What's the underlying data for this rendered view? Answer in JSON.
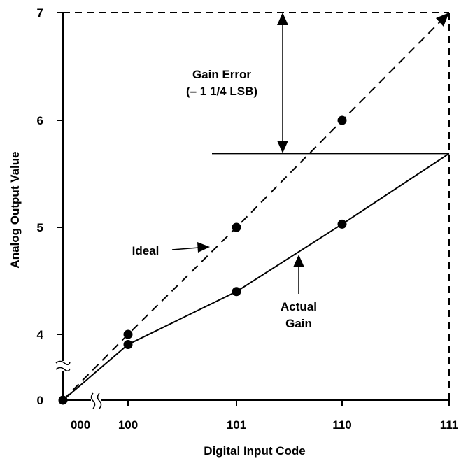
{
  "chart_data": {
    "type": "line",
    "xlabel": "Digital Input Code",
    "ylabel": "Analog Output Value",
    "x_ticks": [
      "000",
      "100",
      "101",
      "110",
      "111"
    ],
    "y_ticks": [
      "0",
      "4",
      "5",
      "6",
      "7"
    ],
    "axis_breaks": {
      "x": true,
      "y": true
    },
    "series": [
      {
        "name": "Ideal",
        "style": "dashed",
        "points": [
          {
            "x": "000",
            "y": 0
          },
          {
            "x": "100",
            "y": 4
          },
          {
            "x": "101",
            "y": 5
          },
          {
            "x": "110",
            "y": 6
          },
          {
            "x": "111",
            "y": 7
          }
        ],
        "markers": [
          "100",
          "101",
          "110"
        ]
      },
      {
        "name": "Actual Gain",
        "style": "solid",
        "points": [
          {
            "x": "000",
            "y": 0
          },
          {
            "x": "100",
            "y": 3.75
          },
          {
            "x": "101",
            "y": 4.4
          },
          {
            "x": "110",
            "y": 5.03
          },
          {
            "x": "111",
            "y": 5.69
          }
        ],
        "markers": [
          "000",
          "100",
          "101",
          "110"
        ]
      }
    ],
    "annotations": {
      "gain_error_line1": "Gain Error",
      "gain_error_line2": "(– 1 1/4 LSB)",
      "ideal_label": "Ideal",
      "actual_line1": "Actual",
      "actual_line2": "Gain"
    },
    "colors": {
      "line": "#000000",
      "background": "#ffffff"
    }
  }
}
